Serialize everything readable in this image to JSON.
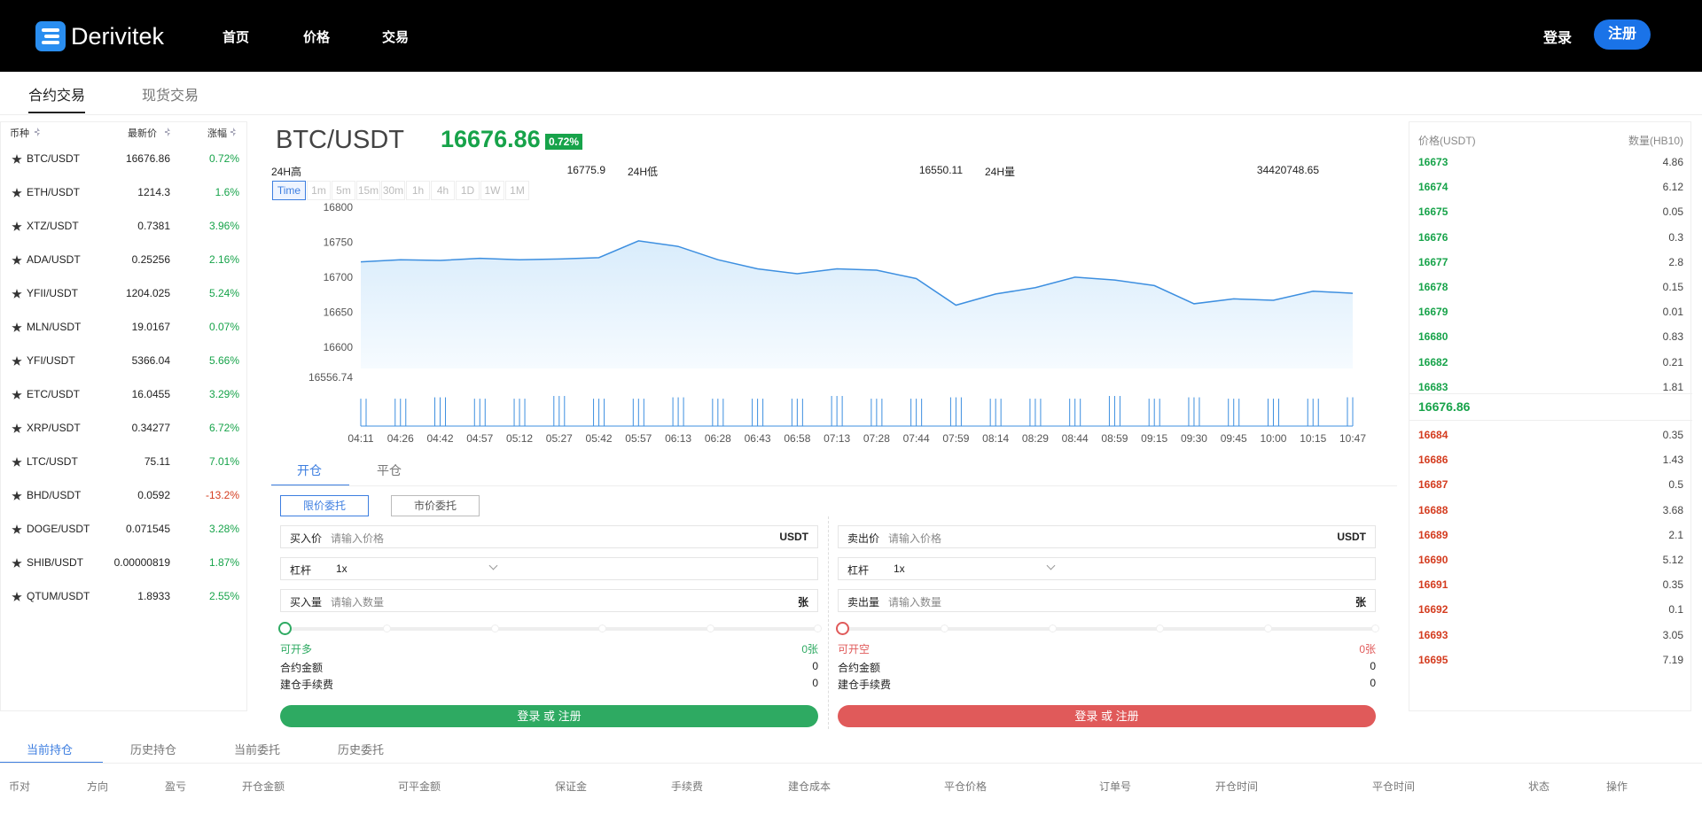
{
  "nav": {
    "logo": "Derivitek",
    "links": [
      "首页",
      "价格",
      "交易"
    ],
    "login": "登录",
    "register": "注册"
  },
  "main_tabs": [
    "合约交易",
    "现货交易"
  ],
  "market": {
    "headers": [
      "币种",
      "最新价",
      "涨幅"
    ],
    "rows": [
      [
        "BTC/USDT",
        "16676.86",
        "0.72%"
      ],
      [
        "ETH/USDT",
        "1214.3",
        "1.6%"
      ],
      [
        "XTZ/USDT",
        "0.7381",
        "3.96%"
      ],
      [
        "ADA/USDT",
        "0.25256",
        "2.16%"
      ],
      [
        "YFII/USDT",
        "1204.025",
        "5.24%"
      ],
      [
        "MLN/USDT",
        "19.0167",
        "0.07%"
      ],
      [
        "YFI/USDT",
        "5366.04",
        "5.66%"
      ],
      [
        "ETC/USDT",
        "16.0455",
        "3.29%"
      ],
      [
        "XRP/USDT",
        "0.34277",
        "6.72%"
      ],
      [
        "LTC/USDT",
        "75.11",
        "7.01%"
      ],
      [
        "BHD/USDT",
        "0.0592",
        "-13.2%"
      ],
      [
        "DOGE/USDT",
        "0.071545",
        "3.28%"
      ],
      [
        "SHIB/USDT",
        "0.00000819",
        "1.87%"
      ],
      [
        "QTUM/USDT",
        "1.8933",
        "2.55%"
      ]
    ]
  },
  "ticker": {
    "pair": "BTC/USDT",
    "price": "16676.86",
    "change": "0.72%",
    "stats": [
      {
        "label": "24H高",
        "value": "16775.9"
      },
      {
        "label": "24H低",
        "value": "16550.11"
      },
      {
        "label": "24H量",
        "value": "34420748.65"
      }
    ],
    "intervals": [
      "Time",
      "1m",
      "5m",
      "15m",
      "30m",
      "1h",
      "4h",
      "1D",
      "1W",
      "1M"
    ]
  },
  "chart_data": {
    "type": "line",
    "categories": [
      "04:11",
      "04:26",
      "04:42",
      "04:57",
      "05:12",
      "05:27",
      "05:42",
      "05:57",
      "06:13",
      "06:28",
      "06:43",
      "06:58",
      "07:13",
      "07:28",
      "07:44",
      "07:59",
      "08:14",
      "08:29",
      "08:44",
      "08:59",
      "09:15",
      "09:30",
      "09:45",
      "10:00",
      "10:15",
      "10:47"
    ],
    "values": [
      16722,
      16725,
      16724,
      16727,
      16725,
      16726,
      16728,
      16752,
      16744,
      16725,
      16712,
      16705,
      16712,
      16710,
      16698,
      16660,
      16676,
      16685,
      16700,
      16696,
      16688,
      16662,
      16669,
      16667,
      16680,
      16677
    ],
    "color": "#3d8fe0",
    "ylim": [
      16556.74,
      16800
    ],
    "yticks": [
      16800,
      16750,
      16700,
      16650,
      16600,
      16556.74
    ],
    "volume": [
      20,
      20,
      21,
      20,
      20,
      22,
      20,
      20,
      21,
      20,
      20,
      20,
      22,
      20,
      20,
      21,
      20,
      20,
      20,
      22,
      20,
      21,
      20,
      20,
      20,
      21
    ],
    "volume_lim": [
      0,
      22
    ]
  },
  "book": {
    "headers": [
      "价格(USDT)",
      "数量(HB10)"
    ],
    "asks": [
      [
        "16673",
        "4.86"
      ],
      [
        "16674",
        "6.12"
      ],
      [
        "16675",
        "0.05"
      ],
      [
        "16676",
        "0.3"
      ],
      [
        "16677",
        "2.8"
      ],
      [
        "16678",
        "0.15"
      ],
      [
        "16679",
        "0.01"
      ],
      [
        "16680",
        "0.83"
      ],
      [
        "16682",
        "0.21"
      ],
      [
        "16683",
        "1.81"
      ]
    ],
    "last": "16676.86",
    "bids": [
      [
        "16684",
        "0.35"
      ],
      [
        "16686",
        "1.43"
      ],
      [
        "16687",
        "0.5"
      ],
      [
        "16688",
        "3.68"
      ],
      [
        "16689",
        "2.1"
      ],
      [
        "16690",
        "5.12"
      ],
      [
        "16691",
        "0.35"
      ],
      [
        "16692",
        "0.1"
      ],
      [
        "16693",
        "3.05"
      ],
      [
        "16695",
        "7.19"
      ]
    ]
  },
  "trade": {
    "tabs": [
      "开仓",
      "平仓"
    ],
    "order_types": [
      "限价委托",
      "市价委托"
    ],
    "sides": [
      {
        "fields": [
          {
            "label": "买入价",
            "placeholder": "请输入价格",
            "unit": "USDT"
          },
          {
            "label": "杠杆",
            "value": "1x"
          },
          {
            "label": "买入量",
            "placeholder": "请输入数量",
            "unit": "张"
          }
        ],
        "summary": [
          [
            "可开多",
            "0张"
          ],
          [
            "合约金额",
            "0"
          ],
          [
            "建仓手续费",
            "0"
          ]
        ],
        "button": "登录 或 注册",
        "color": "#2eaa62"
      },
      {
        "fields": [
          {
            "label": "卖出价",
            "placeholder": "请输入价格",
            "unit": "USDT"
          },
          {
            "label": "杠杆",
            "value": "1x"
          },
          {
            "label": "卖出量",
            "placeholder": "请输入数量",
            "unit": "张"
          }
        ],
        "summary": [
          [
            "可开空",
            "0张"
          ],
          [
            "合约金额",
            "0"
          ],
          [
            "建仓手续费",
            "0"
          ]
        ],
        "button": "登录 或 注册",
        "color": "#e05a5a"
      }
    ]
  },
  "positions": {
    "tabs": [
      "当前持仓",
      "历史持仓",
      "当前委托",
      "历史委托"
    ],
    "columns": [
      "币对",
      "方向",
      "盈亏",
      "开仓金额",
      "可平金额",
      "保证金",
      "手续费",
      "建仓成本",
      "平仓价格",
      "订单号",
      "开仓时间",
      "平仓时间",
      "状态",
      "操作"
    ]
  }
}
